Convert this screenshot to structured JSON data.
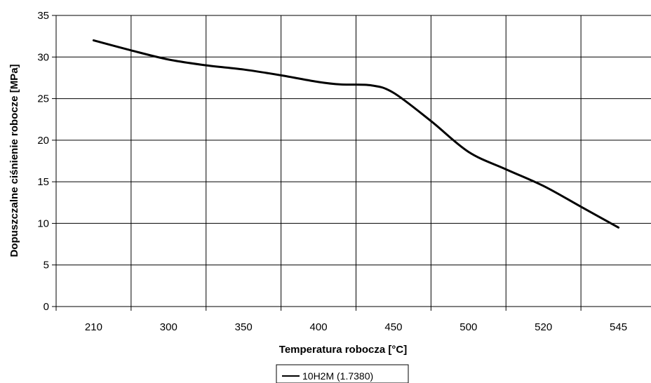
{
  "chart_data": {
    "type": "line",
    "categories": [
      "210",
      "300",
      "350",
      "400",
      "450",
      "500",
      "520",
      "545"
    ],
    "series": [
      {
        "name": "10H2M (1.7380)",
        "color": "#000000",
        "points": [
          {
            "x": 0.0,
            "y": 32.0
          },
          {
            "x": 0.5,
            "y": 30.8
          },
          {
            "x": 1.0,
            "y": 29.7
          },
          {
            "x": 1.5,
            "y": 29.0
          },
          {
            "x": 2.0,
            "y": 28.5
          },
          {
            "x": 2.5,
            "y": 27.8
          },
          {
            "x": 3.0,
            "y": 27.0
          },
          {
            "x": 3.3,
            "y": 26.7
          },
          {
            "x": 3.7,
            "y": 26.6
          },
          {
            "x": 4.0,
            "y": 25.7
          },
          {
            "x": 4.5,
            "y": 22.3
          },
          {
            "x": 5.0,
            "y": 18.6
          },
          {
            "x": 5.5,
            "y": 16.5
          },
          {
            "x": 6.0,
            "y": 14.5
          },
          {
            "x": 6.5,
            "y": 12.0
          },
          {
            "x": 7.0,
            "y": 9.5
          }
        ]
      }
    ],
    "xlabel": "Temperatura robocza [°C]",
    "ylabel": "Dopuszczalne ciśnienie robocze [MPa]",
    "ylim": [
      0,
      35
    ],
    "yticks": [
      0,
      5,
      10,
      15,
      20,
      25,
      30,
      35
    ],
    "grid": true,
    "legend_position": "bottom-center"
  }
}
